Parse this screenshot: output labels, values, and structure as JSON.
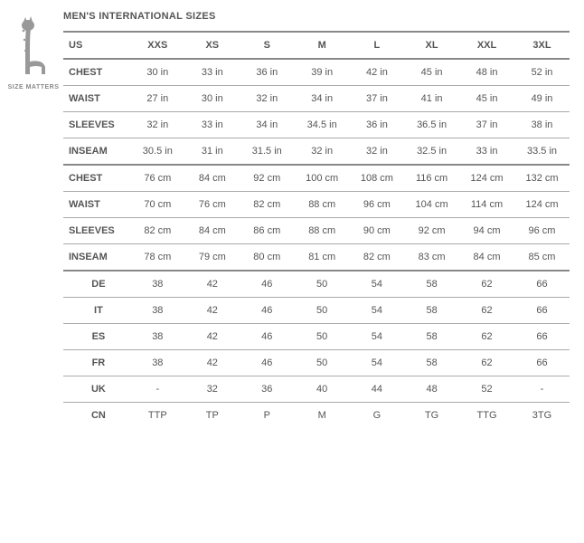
{
  "logo": {
    "caption": "SIZE MATTERS",
    "color": "#999999"
  },
  "title": "MEN'S INTERNATIONAL SIZES",
  "styling": {
    "font_family": "Arial",
    "title_fontsize": 11,
    "cell_fontsize": 11,
    "text_color": "#555555",
    "thick_rule_color": "#888888",
    "thin_rule_color": "#aaaaaa",
    "background": "#ffffff"
  },
  "columns": [
    "US",
    "XXS",
    "XS",
    "S",
    "M",
    "L",
    "XL",
    "XXL",
    "3XL"
  ],
  "sections": [
    {
      "top_border": "thick",
      "row_border": "thin",
      "label_align": "left",
      "rows": [
        {
          "label": "CHEST",
          "cells": [
            "30 in",
            "33 in",
            "36 in",
            "39 in",
            "42 in",
            "45 in",
            "48 in",
            "52 in"
          ]
        },
        {
          "label": "WAIST",
          "cells": [
            "27 in",
            "30 in",
            "32 in",
            "34 in",
            "37 in",
            "41 in",
            "45 in",
            "49 in"
          ]
        },
        {
          "label": "SLEEVES",
          "cells": [
            "32 in",
            "33 in",
            "34 in",
            "34.5 in",
            "36 in",
            "36.5 in",
            "37 in",
            "38 in"
          ]
        },
        {
          "label": "INSEAM",
          "cells": [
            "30.5 in",
            "31 in",
            "31.5 in",
            "32 in",
            "32 in",
            "32.5 in",
            "33 in",
            "33.5 in"
          ]
        }
      ]
    },
    {
      "top_border": "thick",
      "row_border": "thin",
      "label_align": "left",
      "rows": [
        {
          "label": "CHEST",
          "cells": [
            "76 cm",
            "84 cm",
            "92 cm",
            "100 cm",
            "108 cm",
            "116 cm",
            "124 cm",
            "132 cm"
          ]
        },
        {
          "label": "WAIST",
          "cells": [
            "70 cm",
            "76 cm",
            "82 cm",
            "88 cm",
            "96 cm",
            "104 cm",
            "114 cm",
            "124 cm"
          ]
        },
        {
          "label": "SLEEVES",
          "cells": [
            "82 cm",
            "84 cm",
            "86 cm",
            "88 cm",
            "90 cm",
            "92 cm",
            "94 cm",
            "96 cm"
          ]
        },
        {
          "label": "INSEAM",
          "cells": [
            "78 cm",
            "79 cm",
            "80 cm",
            "81 cm",
            "82 cm",
            "83 cm",
            "84 cm",
            "85 cm"
          ]
        }
      ]
    },
    {
      "top_border": "thick",
      "row_border": "thin",
      "label_align": "center",
      "rows": [
        {
          "label": "DE",
          "cells": [
            "38",
            "42",
            "46",
            "50",
            "54",
            "58",
            "62",
            "66"
          ]
        },
        {
          "label": "IT",
          "cells": [
            "38",
            "42",
            "46",
            "50",
            "54",
            "58",
            "62",
            "66"
          ]
        },
        {
          "label": "ES",
          "cells": [
            "38",
            "42",
            "46",
            "50",
            "54",
            "58",
            "62",
            "66"
          ]
        },
        {
          "label": "FR",
          "cells": [
            "38",
            "42",
            "46",
            "50",
            "54",
            "58",
            "62",
            "66"
          ]
        },
        {
          "label": "UK",
          "cells": [
            "-",
            "32",
            "36",
            "40",
            "44",
            "48",
            "52",
            "-"
          ]
        },
        {
          "label": "CN",
          "cells": [
            "TTP",
            "TP",
            "P",
            "M",
            "G",
            "TG",
            "TTG",
            "3TG"
          ]
        }
      ]
    }
  ]
}
